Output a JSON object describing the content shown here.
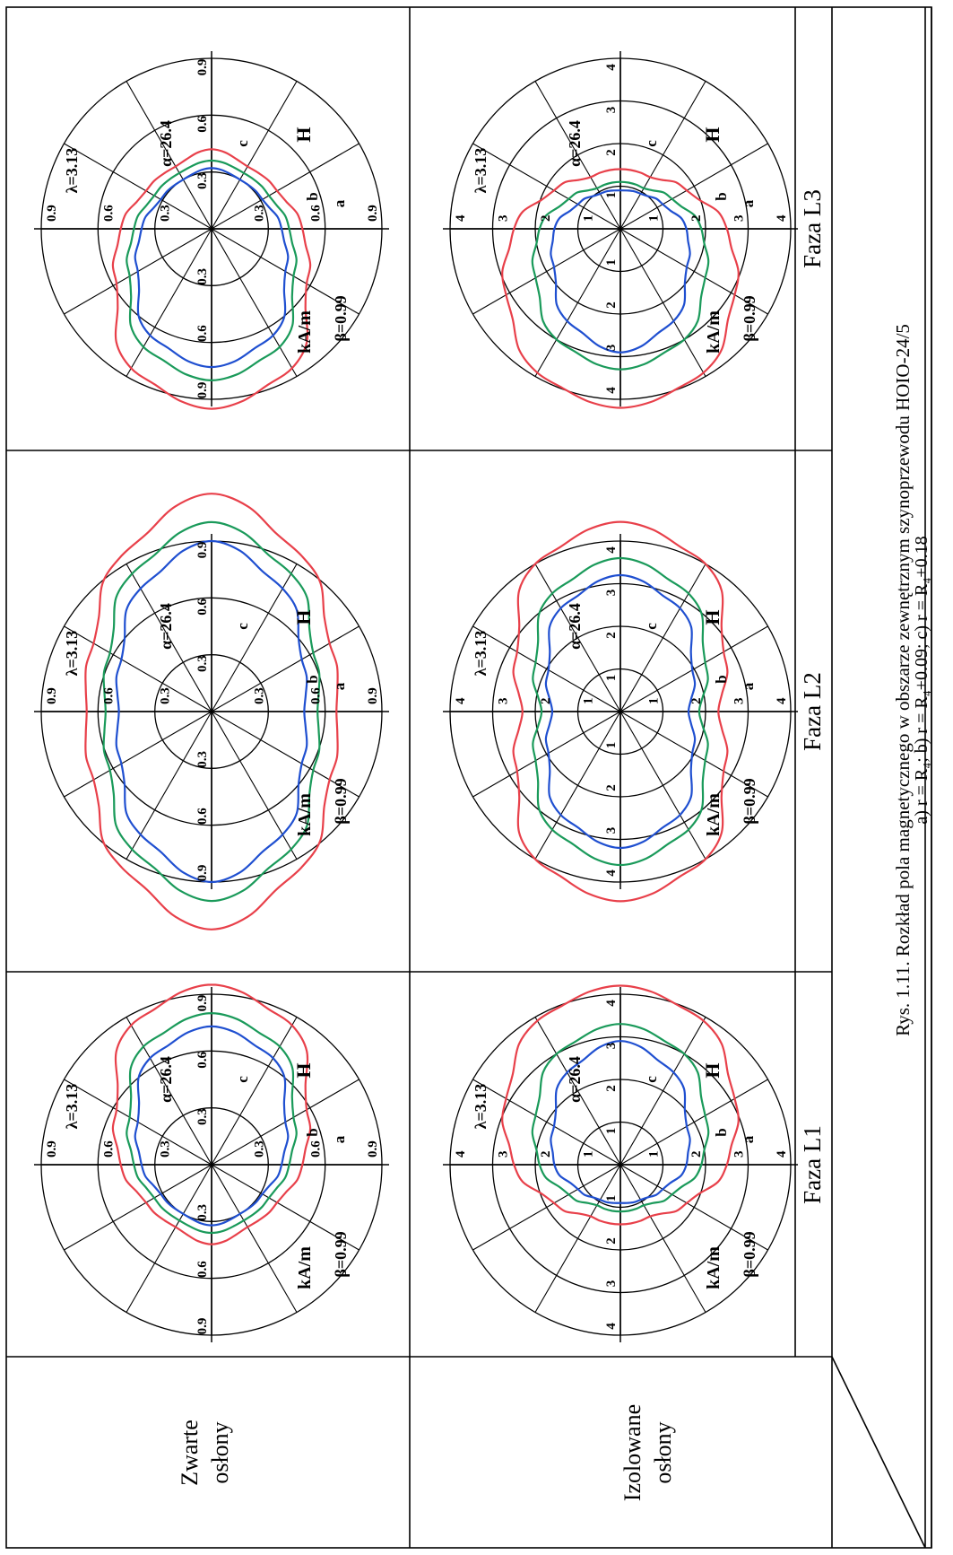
{
  "table": {
    "row_headers": [
      {
        "line1": "Izolowane",
        "line2": "osłony"
      },
      {
        "line1": "Zwarte",
        "line2": "osłony"
      }
    ],
    "column_headers": [
      "Faza L1",
      "Faza L2",
      "Faza L3"
    ]
  },
  "caption": {
    "line1": "Rys. 1.11. Rozkład  pola magnetycznego w obszarze zewnętrznym szynoprzewodu HOIO-24/5",
    "line2": "a) r = R₄; b) r = R₄+0.09; c) r = R₄+0.18"
  },
  "colors": {
    "a": "#e8404a",
    "b": "#1a9a5a",
    "c": "#1f4fd0",
    "grid": "#000000"
  },
  "chart_data": [
    {
      "type": "polar",
      "row": "Izolowane osłony",
      "column": "Faza L1",
      "unit_label": "kA/m",
      "quantity_label": "H",
      "params": {
        "beta": "β=0.99",
        "alpha": "α=26.4",
        "lambda": "λ=3.13"
      },
      "rings": [
        1,
        2,
        3,
        4
      ],
      "ring_labels": [
        "1",
        "2",
        "3",
        "4"
      ],
      "grid": true,
      "series": [
        {
          "name": "a",
          "theta_deg": [
            0,
            30,
            60,
            90,
            120,
            150,
            180,
            210,
            240,
            270,
            300,
            330
          ],
          "r": [
            4.2,
            3.9,
            3.1,
            2.5,
            1.8,
            1.4,
            1.4,
            1.4,
            1.8,
            2.5,
            3.1,
            3.9
          ]
        },
        {
          "name": "b",
          "theta_deg": [
            0,
            30,
            60,
            90,
            120,
            150,
            180,
            210,
            240,
            270,
            300,
            330
          ],
          "r": [
            3.3,
            3.0,
            2.3,
            1.9,
            1.4,
            1.1,
            1.1,
            1.1,
            1.4,
            1.9,
            2.3,
            3.0
          ]
        },
        {
          "name": "c",
          "theta_deg": [
            0,
            30,
            60,
            90,
            120,
            150,
            180,
            210,
            240,
            270,
            300,
            330
          ],
          "r": [
            2.9,
            2.5,
            1.8,
            1.55,
            1.15,
            0.95,
            0.9,
            0.95,
            1.15,
            1.55,
            1.8,
            2.5
          ]
        }
      ]
    },
    {
      "type": "polar",
      "row": "Izolowane osłony",
      "column": "Faza L2",
      "unit_label": "kA/m",
      "quantity_label": "H",
      "params": {
        "beta": "β=0.99",
        "alpha": "α=26.4",
        "lambda": "λ=3.13"
      },
      "rings": [
        1,
        2,
        3,
        4
      ],
      "ring_labels": [
        "1",
        "2",
        "3",
        "4"
      ],
      "grid": true,
      "series": [
        {
          "name": "a",
          "theta_deg": [
            0,
            30,
            60,
            90,
            120,
            150,
            180,
            210,
            240,
            270,
            300,
            330
          ],
          "r": [
            4.45,
            4.0,
            2.8,
            2.3,
            2.8,
            4.0,
            4.45,
            4.0,
            2.8,
            2.3,
            2.8,
            4.0
          ]
        },
        {
          "name": "b",
          "theta_deg": [
            0,
            30,
            60,
            90,
            120,
            150,
            180,
            210,
            240,
            270,
            300,
            330
          ],
          "r": [
            3.6,
            3.2,
            2.3,
            1.85,
            2.3,
            3.2,
            3.6,
            3.2,
            2.3,
            1.85,
            2.3,
            3.2
          ]
        },
        {
          "name": "c",
          "theta_deg": [
            0,
            30,
            60,
            90,
            120,
            150,
            180,
            210,
            240,
            270,
            300,
            330
          ],
          "r": [
            3.2,
            2.8,
            1.95,
            1.6,
            1.95,
            2.8,
            3.2,
            2.8,
            1.95,
            1.6,
            1.95,
            2.8
          ]
        }
      ]
    },
    {
      "type": "polar",
      "row": "Izolowane osłony",
      "column": "Faza L3",
      "unit_label": "kA/m",
      "quantity_label": "H",
      "params": {
        "beta": "β=0.99",
        "alpha": "α=26.4",
        "lambda": "λ=3.13"
      },
      "rings": [
        1,
        2,
        3,
        4
      ],
      "ring_labels": [
        "1",
        "2",
        "3",
        "4"
      ],
      "grid": true,
      "series": [
        {
          "name": "a",
          "theta_deg": [
            0,
            30,
            60,
            90,
            120,
            150,
            180,
            210,
            240,
            270,
            300,
            330
          ],
          "r": [
            1.4,
            1.4,
            1.8,
            2.5,
            3.1,
            3.9,
            4.2,
            3.9,
            3.1,
            2.5,
            1.8,
            1.4
          ]
        },
        {
          "name": "b",
          "theta_deg": [
            0,
            30,
            60,
            90,
            120,
            150,
            180,
            210,
            240,
            270,
            300,
            330
          ],
          "r": [
            1.1,
            1.1,
            1.4,
            1.9,
            2.3,
            3.0,
            3.3,
            3.0,
            2.3,
            1.9,
            1.4,
            1.1
          ]
        },
        {
          "name": "c",
          "theta_deg": [
            0,
            30,
            60,
            90,
            120,
            150,
            180,
            210,
            240,
            270,
            300,
            330
          ],
          "r": [
            0.9,
            0.95,
            1.15,
            1.55,
            1.8,
            2.5,
            2.9,
            2.5,
            1.8,
            1.55,
            1.15,
            0.95
          ]
        }
      ]
    },
    {
      "type": "polar",
      "row": "Zwarte osłony",
      "column": "Faza L1",
      "unit_label": "kA/m",
      "quantity_label": "H",
      "params": {
        "beta": "β=0.99",
        "alpha": "α=26.4",
        "lambda": "λ=3.13"
      },
      "rings": [
        0.3,
        0.6,
        0.9
      ],
      "ring_labels": [
        "0.3",
        "0.6",
        "0.9"
      ],
      "grid": true,
      "series": [
        {
          "name": "a",
          "theta_deg": [
            0,
            30,
            60,
            90,
            120,
            150,
            180,
            210,
            240,
            270,
            300,
            330
          ],
          "r": [
            0.95,
            0.85,
            0.58,
            0.48,
            0.4,
            0.38,
            0.42,
            0.38,
            0.4,
            0.48,
            0.58,
            0.85
          ]
        },
        {
          "name": "b",
          "theta_deg": [
            0,
            30,
            60,
            90,
            120,
            150,
            180,
            210,
            240,
            270,
            300,
            330
          ],
          "r": [
            0.8,
            0.72,
            0.5,
            0.41,
            0.35,
            0.34,
            0.36,
            0.34,
            0.35,
            0.41,
            0.5,
            0.72
          ]
        },
        {
          "name": "c",
          "theta_deg": [
            0,
            30,
            60,
            90,
            120,
            150,
            180,
            210,
            240,
            270,
            300,
            330
          ],
          "r": [
            0.73,
            0.65,
            0.45,
            0.37,
            0.31,
            0.3,
            0.32,
            0.3,
            0.31,
            0.37,
            0.45,
            0.65
          ]
        }
      ]
    },
    {
      "type": "polar",
      "row": "Zwarte osłony",
      "column": "Faza L2",
      "unit_label": "kA/m",
      "quantity_label": "H",
      "params": {
        "beta": "β=0.99",
        "alpha": "α=26.4",
        "lambda": "λ=3.13"
      },
      "rings": [
        0.3,
        0.6,
        0.9
      ],
      "ring_labels": [
        "0.3",
        "0.6",
        "0.9"
      ],
      "grid": true,
      "series": [
        {
          "name": "a",
          "theta_deg": [
            0,
            30,
            60,
            90,
            120,
            150,
            180,
            210,
            240,
            270,
            300,
            330
          ],
          "r": [
            1.15,
            0.95,
            0.72,
            0.66,
            0.72,
            0.95,
            1.15,
            0.95,
            0.72,
            0.66,
            0.72,
            0.95
          ]
        },
        {
          "name": "b",
          "theta_deg": [
            0,
            30,
            60,
            90,
            120,
            150,
            180,
            210,
            240,
            270,
            300,
            330
          ],
          "r": [
            1.0,
            0.84,
            0.62,
            0.56,
            0.62,
            0.84,
            1.0,
            0.84,
            0.62,
            0.56,
            0.62,
            0.84
          ]
        },
        {
          "name": "c",
          "theta_deg": [
            0,
            30,
            60,
            90,
            120,
            150,
            180,
            210,
            240,
            270,
            300,
            330
          ],
          "r": [
            0.9,
            0.75,
            0.55,
            0.49,
            0.55,
            0.75,
            0.9,
            0.75,
            0.55,
            0.49,
            0.55,
            0.75
          ]
        }
      ]
    },
    {
      "type": "polar",
      "row": "Zwarte osłony",
      "column": "Faza L3",
      "unit_label": "kA/m",
      "quantity_label": "H",
      "params": {
        "beta": "β=0.99",
        "alpha": "α=26.4",
        "lambda": "λ=3.13"
      },
      "rings": [
        0.3,
        0.6,
        0.9
      ],
      "ring_labels": [
        "0.3",
        "0.6",
        "0.9"
      ],
      "grid": true,
      "series": [
        {
          "name": "a",
          "theta_deg": [
            0,
            30,
            60,
            90,
            120,
            150,
            180,
            210,
            240,
            270,
            300,
            330
          ],
          "r": [
            0.42,
            0.38,
            0.4,
            0.48,
            0.58,
            0.85,
            0.95,
            0.85,
            0.58,
            0.48,
            0.4,
            0.38
          ]
        },
        {
          "name": "b",
          "theta_deg": [
            0,
            30,
            60,
            90,
            120,
            150,
            180,
            210,
            240,
            270,
            300,
            330
          ],
          "r": [
            0.36,
            0.34,
            0.35,
            0.41,
            0.5,
            0.72,
            0.8,
            0.72,
            0.5,
            0.41,
            0.35,
            0.34
          ]
        },
        {
          "name": "c",
          "theta_deg": [
            0,
            30,
            60,
            90,
            120,
            150,
            180,
            210,
            240,
            270,
            300,
            330
          ],
          "r": [
            0.32,
            0.3,
            0.31,
            0.37,
            0.45,
            0.65,
            0.73,
            0.65,
            0.45,
            0.37,
            0.31,
            0.3
          ]
        }
      ]
    }
  ]
}
